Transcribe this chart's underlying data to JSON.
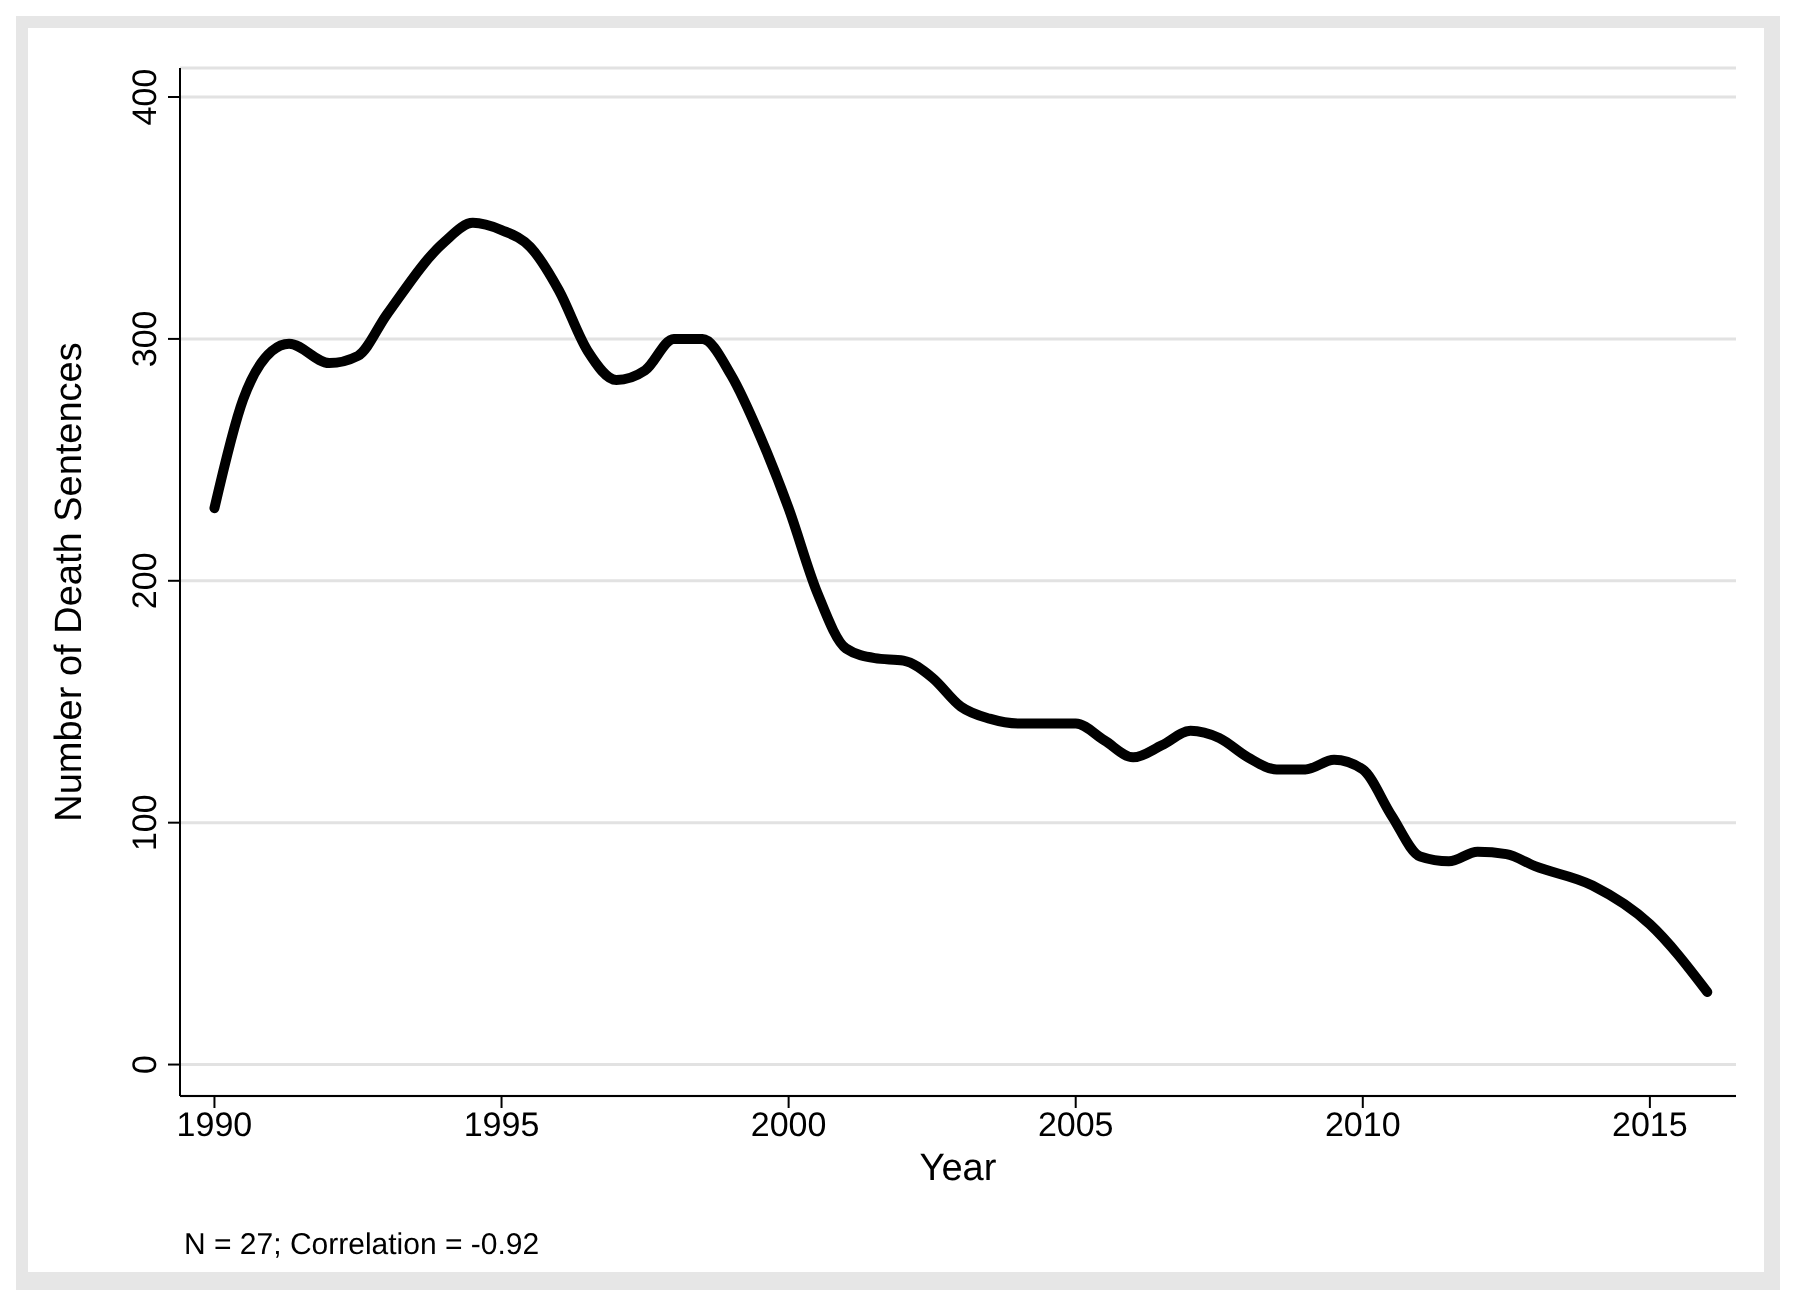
{
  "chart_data": {
    "type": "line",
    "xlabel": "Year",
    "ylabel": "Number of Death Sentences",
    "annotations": [
      "N = 27; Correlation = -0.92"
    ],
    "xlim": [
      1989.4,
      2016.5
    ],
    "xticks": [
      1990,
      1995,
      2000,
      2005,
      2010,
      2015
    ],
    "ylim": [
      -13,
      412
    ],
    "yticks": [
      0,
      100,
      200,
      300,
      400
    ],
    "grid": "y",
    "marker": "none",
    "line_style": "solid",
    "series": [
      {
        "color": "#000000",
        "x": [
          1990,
          1990.5,
          1991,
          1991.3,
          1992,
          1992.5,
          1993,
          1994,
          1994.5,
          1995,
          1995.5,
          1996,
          1996.5,
          1997,
          1997.5,
          1998,
          1998.5,
          1999,
          1999.5,
          2000,
          2000.5,
          2001,
          2001.5,
          2002,
          2002.5,
          2003,
          2003.5,
          2004,
          2005,
          2005.5,
          2006,
          2006.5,
          2007,
          2007.5,
          2008,
          2008.5,
          2009,
          2009.5,
          2010,
          2010.5,
          2011,
          2011.5,
          2012,
          2012.5,
          2013,
          2014,
          2015,
          2016
        ],
        "values": [
          230,
          275,
          295,
          298,
          290,
          293,
          310,
          340,
          348,
          345,
          338,
          320,
          295,
          283,
          287,
          300,
          300,
          285,
          260,
          230,
          195,
          172,
          168,
          167,
          160,
          148,
          143,
          141,
          141,
          134,
          127,
          132,
          138,
          135,
          127,
          122,
          122,
          126,
          122,
          103,
          86,
          84,
          88,
          87,
          82,
          74,
          58,
          30
        ]
      }
    ]
  }
}
